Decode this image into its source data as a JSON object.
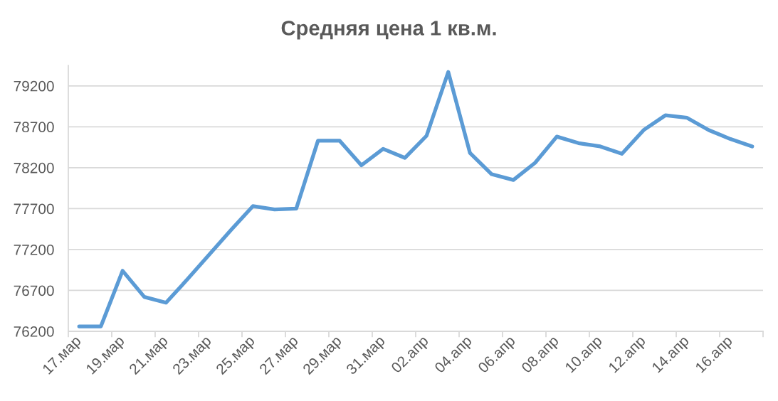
{
  "chart_data": {
    "type": "line",
    "title": "Средняя цена 1 кв.м.",
    "categories": [
      "17.мар",
      null,
      "19.мар",
      null,
      "21.мар",
      null,
      "23.мар",
      null,
      "25.мар",
      null,
      "27.мар",
      null,
      "29.мар",
      null,
      "31.мар",
      null,
      "02.апр",
      null,
      "04.апр",
      null,
      "06.апр",
      null,
      "08.апр",
      null,
      "10.апр",
      null,
      "12.апр",
      null,
      "14.апр",
      null,
      "16.апр",
      null
    ],
    "series": [
      {
        "color": "#5b9bd5",
        "values": [
          76260,
          76260,
          76940,
          76620,
          76550,
          76840,
          77140,
          77440,
          77730,
          77690,
          77700,
          78530,
          78530,
          78230,
          78430,
          78320,
          78590,
          79370,
          78380,
          78120,
          78050,
          78260,
          78580,
          78500,
          78460,
          78370,
          78660,
          78840,
          78810,
          78660,
          78550,
          78460
        ]
      }
    ],
    "ylim": [
      76200,
      79450
    ],
    "yticks": [
      76200,
      76700,
      77200,
      77700,
      78200,
      78700,
      79200
    ],
    "grid": "y",
    "line_style": "solid"
  }
}
